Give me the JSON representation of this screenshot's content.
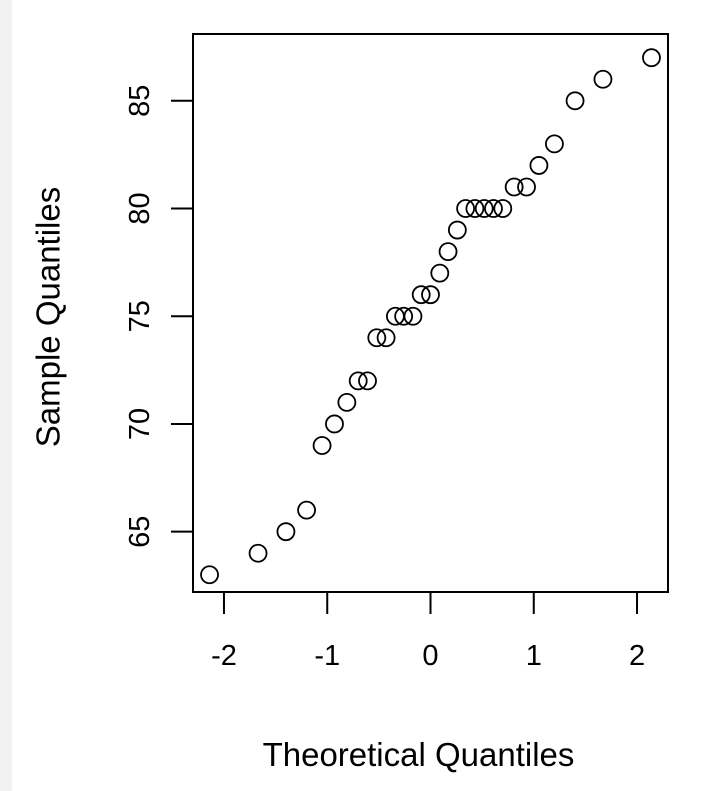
{
  "chart_data": {
    "type": "scatter",
    "title": "",
    "xlabel": "Theoretical Quantiles",
    "ylabel": "Sample Quantiles",
    "xlim": [
      -2.3,
      2.3
    ],
    "ylim": [
      62.2,
      88.1
    ],
    "xticks": [
      -2,
      -1,
      0,
      1,
      2
    ],
    "xtick_labels": [
      "-2",
      "-1",
      "0",
      "1",
      "2"
    ],
    "yticks": [
      65,
      70,
      75,
      80,
      85
    ],
    "ytick_labels": [
      "65",
      "70",
      "75",
      "80",
      "85"
    ],
    "grid": false,
    "marker": "open-circle",
    "points": [
      {
        "x": -2.14,
        "y": 63
      },
      {
        "x": -1.67,
        "y": 64
      },
      {
        "x": -1.4,
        "y": 65
      },
      {
        "x": -1.2,
        "y": 66
      },
      {
        "x": -1.05,
        "y": 69
      },
      {
        "x": -0.93,
        "y": 70
      },
      {
        "x": -0.81,
        "y": 71
      },
      {
        "x": -0.7,
        "y": 72
      },
      {
        "x": -0.61,
        "y": 72
      },
      {
        "x": -0.52,
        "y": 74
      },
      {
        "x": -0.43,
        "y": 74
      },
      {
        "x": -0.34,
        "y": 75
      },
      {
        "x": -0.26,
        "y": 75
      },
      {
        "x": -0.17,
        "y": 75
      },
      {
        "x": -0.09,
        "y": 76
      },
      {
        "x": 0.0,
        "y": 76
      },
      {
        "x": 0.09,
        "y": 77
      },
      {
        "x": 0.17,
        "y": 78
      },
      {
        "x": 0.26,
        "y": 79
      },
      {
        "x": 0.34,
        "y": 80
      },
      {
        "x": 0.43,
        "y": 80
      },
      {
        "x": 0.52,
        "y": 80
      },
      {
        "x": 0.61,
        "y": 80
      },
      {
        "x": 0.7,
        "y": 80
      },
      {
        "x": 0.81,
        "y": 81
      },
      {
        "x": 0.93,
        "y": 81
      },
      {
        "x": 1.05,
        "y": 82
      },
      {
        "x": 1.2,
        "y": 83
      },
      {
        "x": 1.4,
        "y": 85
      },
      {
        "x": 1.67,
        "y": 86
      },
      {
        "x": 2.14,
        "y": 87
      }
    ]
  }
}
